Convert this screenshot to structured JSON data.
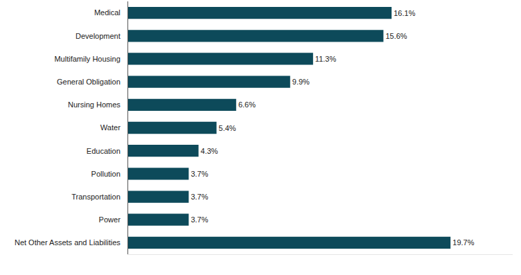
{
  "chart_data": {
    "type": "bar",
    "orientation": "horizontal",
    "categories": [
      "Medical",
      "Development",
      "Multifamily Housing",
      "General Obligation",
      "Nursing Homes",
      "Water",
      "Education",
      "Pollution",
      "Transportation",
      "Power",
      "Net Other Assets and Liabilities"
    ],
    "values": [
      16.1,
      15.6,
      11.3,
      9.9,
      6.6,
      5.4,
      4.3,
      3.7,
      3.7,
      3.7,
      19.7
    ],
    "value_labels": [
      "16.1%",
      "15.6%",
      "11.3%",
      "9.9%",
      "6.6%",
      "5.4%",
      "4.3%",
      "3.7%",
      "3.7%",
      "3.7%",
      "19.7%"
    ],
    "color": "#0d4a5a",
    "xlim": [
      0,
      23.5
    ],
    "xticks": [],
    "data_labels": true,
    "tick_labels": "y",
    "grid": false
  }
}
